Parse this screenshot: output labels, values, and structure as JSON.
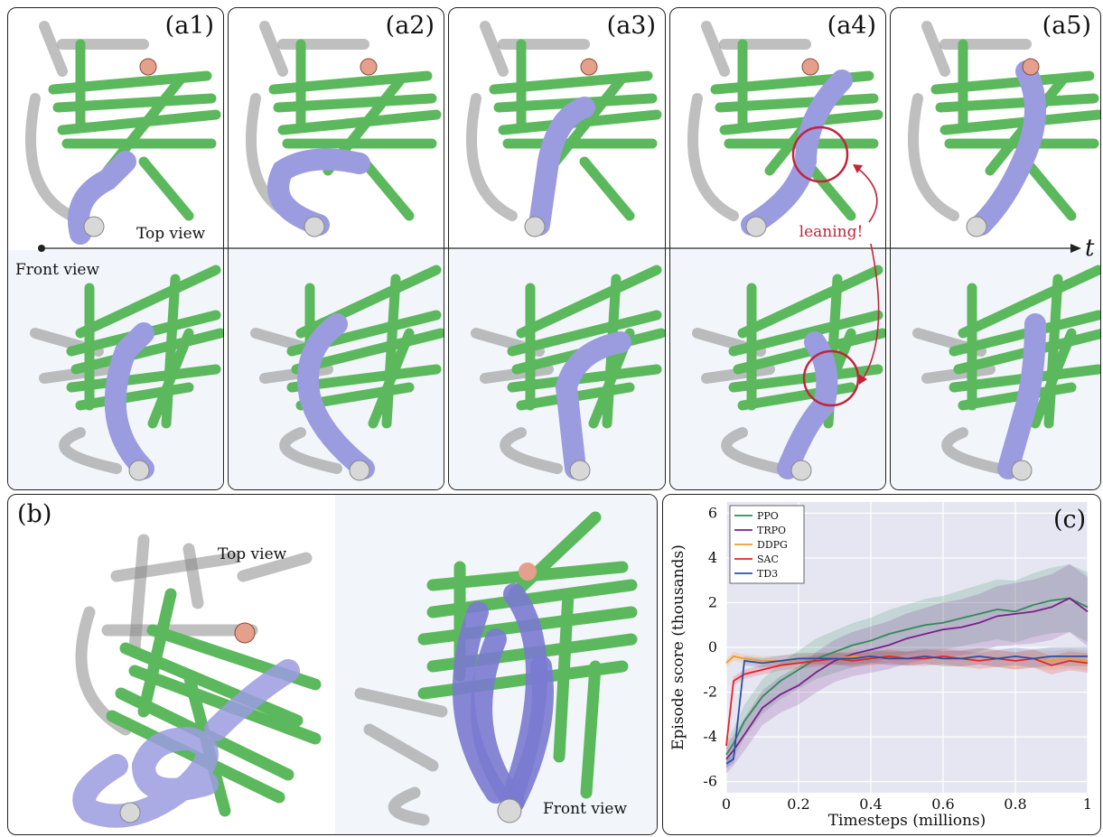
{
  "panels_a": [
    {
      "label": "(a1)"
    },
    {
      "label": "(a2)"
    },
    {
      "label": "(a3)"
    },
    {
      "label": "(a4)"
    },
    {
      "label": "(a5)"
    }
  ],
  "views": {
    "top": "Top view",
    "front": "Front view"
  },
  "timeline": {
    "axis_label": "t",
    "annotation": "leaning!"
  },
  "panel_b": {
    "label": "(b)",
    "top_view": "Top view",
    "front_view": "Front view"
  },
  "colors": {
    "rods": "#5cb85c",
    "tube": "#9b9be0",
    "shadow": "#7a7a7a",
    "annotation": "#c0253a"
  },
  "chart_data": {
    "type": "line",
    "label": "(c)",
    "xlabel": "Timesteps (millions)",
    "ylabel": "Episode score (thousands)",
    "xlim": [
      0,
      1
    ],
    "ylim": [
      -6.5,
      6.5
    ],
    "xticks": [
      "0",
      "0.2",
      "0.4",
      "0.6",
      "0.8",
      "1"
    ],
    "yticks": [
      "6",
      "4",
      "2",
      "0",
      "-2",
      "-4",
      "-6"
    ],
    "grid": true,
    "legend_position": "top-left",
    "x": [
      0,
      0.02,
      0.05,
      0.1,
      0.15,
      0.2,
      0.25,
      0.3,
      0.35,
      0.4,
      0.45,
      0.5,
      0.55,
      0.6,
      0.65,
      0.7,
      0.75,
      0.8,
      0.85,
      0.9,
      0.95,
      1.0
    ],
    "series": [
      {
        "name": "PPO",
        "color": "#2e8b57",
        "values": [
          -4.8,
          -4.3,
          -3.3,
          -2.2,
          -1.5,
          -1.0,
          -0.5,
          -0.2,
          0.1,
          0.3,
          0.6,
          0.8,
          1.0,
          1.1,
          1.3,
          1.5,
          1.7,
          1.6,
          1.9,
          2.1,
          2.2,
          1.8
        ]
      },
      {
        "name": "TRPO",
        "color": "#7b1f8b",
        "values": [
          -5.0,
          -4.6,
          -3.9,
          -2.7,
          -2.1,
          -1.7,
          -1.1,
          -0.6,
          -0.3,
          -0.1,
          0.1,
          0.4,
          0.6,
          0.8,
          0.9,
          1.1,
          1.4,
          1.5,
          1.6,
          1.8,
          2.2,
          1.6
        ]
      },
      {
        "name": "DDPG",
        "color": "#f29a24",
        "values": [
          -0.7,
          -0.4,
          -0.5,
          -0.6,
          -0.6,
          -0.5,
          -0.5,
          -0.5,
          -0.4,
          -0.5,
          -0.4,
          -0.5,
          -0.4,
          -0.5,
          -0.5,
          -0.4,
          -0.5,
          -0.6,
          -0.5,
          -0.6,
          -0.5,
          -0.6
        ]
      },
      {
        "name": "SAC",
        "color": "#e3242b",
        "values": [
          -4.4,
          -1.5,
          -1.2,
          -1.0,
          -0.8,
          -0.7,
          -0.6,
          -0.5,
          -0.6,
          -0.5,
          -0.4,
          -0.5,
          -0.5,
          -0.4,
          -0.5,
          -0.6,
          -0.5,
          -0.6,
          -0.5,
          -0.8,
          -0.6,
          -0.7
        ]
      },
      {
        "name": "TD3",
        "color": "#2b4fa8",
        "values": [
          -5.2,
          -5.0,
          -0.6,
          -0.7,
          -0.6,
          -0.5,
          -0.5,
          -0.5,
          -0.5,
          -0.4,
          -0.5,
          -0.5,
          -0.4,
          -0.5,
          -0.5,
          -0.4,
          -0.5,
          -0.4,
          -0.5,
          -0.4,
          -0.4,
          -0.4
        ]
      }
    ]
  }
}
